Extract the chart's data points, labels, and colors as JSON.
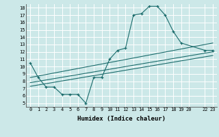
{
  "xlabel": "Humidex (Indice chaleur)",
  "xlim": [
    -0.5,
    23.5
  ],
  "ylim": [
    4.5,
    18.5
  ],
  "xticks": [
    0,
    1,
    2,
    3,
    4,
    5,
    6,
    7,
    8,
    9,
    10,
    11,
    12,
    13,
    14,
    15,
    16,
    17,
    18,
    19,
    20,
    22,
    23
  ],
  "yticks": [
    5,
    6,
    7,
    8,
    9,
    10,
    11,
    12,
    13,
    14,
    15,
    16,
    17,
    18
  ],
  "background_color": "#cce8e8",
  "grid_color": "#aad4d4",
  "line_color": "#1a6b6b",
  "zigzag": {
    "x": [
      0,
      1,
      2,
      3,
      4,
      5,
      6,
      7,
      8,
      9,
      10,
      11,
      12,
      13,
      14,
      15,
      16,
      17,
      18,
      19,
      22,
      23
    ],
    "y": [
      10.5,
      8.5,
      7.2,
      7.2,
      6.2,
      6.2,
      6.2,
      5.0,
      8.5,
      8.5,
      11.0,
      12.2,
      12.5,
      17.0,
      17.2,
      18.2,
      18.2,
      17.0,
      14.8,
      13.2,
      12.2,
      12.2
    ]
  },
  "linear_lines": [
    {
      "x0": 0,
      "y0": 8.5,
      "x1": 23,
      "y1": 13.2
    },
    {
      "x0": 0,
      "y0": 7.8,
      "x1": 23,
      "y1": 12.0
    },
    {
      "x0": 0,
      "y0": 7.3,
      "x1": 23,
      "y1": 11.5
    }
  ]
}
